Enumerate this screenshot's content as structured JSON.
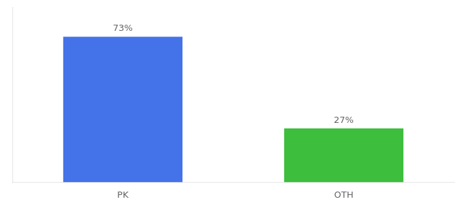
{
  "chart_data": {
    "type": "bar",
    "categories": [
      "PK",
      "OTH"
    ],
    "values": [
      73,
      27
    ],
    "value_labels": [
      "73%",
      "27%"
    ],
    "colors": [
      "#4472E8",
      "#3DBE3D"
    ],
    "ylim": [
      0,
      88
    ],
    "grid": false,
    "tick_labels": "x",
    "data_labels": true
  }
}
